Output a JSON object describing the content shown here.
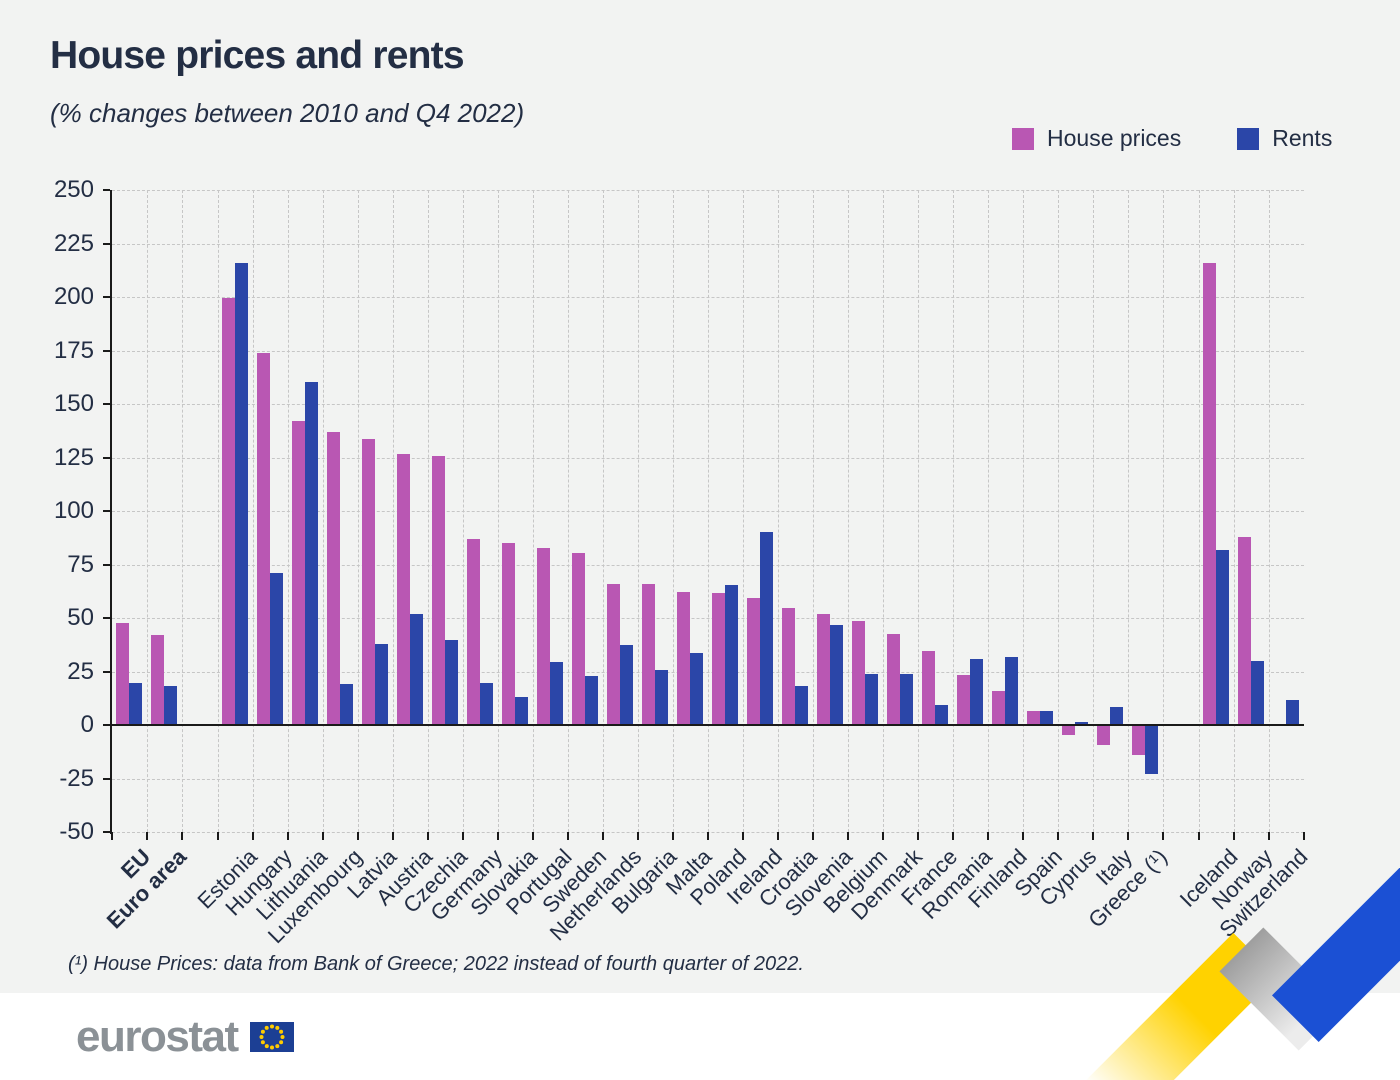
{
  "title": "House prices and rents",
  "subtitle": "(% changes between 2010 and Q4 2022)",
  "legend": {
    "house_prices_label": "House prices",
    "rents_label": "Rents"
  },
  "footnote": "(¹) House Prices: data from Bank of Greece; 2022 instead of fourth quarter of 2022.",
  "logo": {
    "text": "eurostat"
  },
  "colors": {
    "house_prices": "#b957b3",
    "rents": "#2b46a8",
    "background": "#f2f3f2",
    "text": "#232e44",
    "grid": "#c6c6c6",
    "axis": "#1a1a1a",
    "logo_gray": "#8b9196",
    "flag_blue": "#1c3f94",
    "star_yellow": "#ffcc00",
    "ribbon_yellow": "#ffd200",
    "ribbon_blue": "#1b50d4"
  },
  "y_axis": {
    "min": -50,
    "max": 250,
    "step": 25,
    "ticks": [
      250,
      225,
      200,
      175,
      150,
      125,
      100,
      75,
      50,
      25,
      0,
      -25,
      -50
    ]
  },
  "chart_data": {
    "type": "bar",
    "title": "House prices and rents",
    "subtitle": "(% changes between 2010 and Q4 2022)",
    "ylabel": "% change",
    "ylim": [
      -50,
      250
    ],
    "grid": true,
    "legend_position": "top-right",
    "categories": [
      "EU",
      "Euro area",
      "Estonia",
      "Hungary",
      "Lithuania",
      "Luxembourg",
      "Latvia",
      "Austria",
      "Czechia",
      "Germany",
      "Slovakia",
      "Portugal",
      "Sweden",
      "Netherlands",
      "Bulgaria",
      "Malta",
      "Poland",
      "Ireland",
      "Croatia",
      "Slovenia",
      "Belgium",
      "Denmark",
      "France",
      "Romania",
      "Finland",
      "Spain",
      "Cyprus",
      "Italy",
      "Greece (¹)",
      "Iceland",
      "Norway",
      "Switzerland"
    ],
    "bold_categories": [
      "EU",
      "Euro area"
    ],
    "gaps_after": [
      "Euro area",
      "Greece (¹)"
    ],
    "series": [
      {
        "name": "House prices",
        "values": [
          47.5,
          42,
          199.5,
          174,
          142,
          137,
          133.5,
          126.5,
          125.5,
          87,
          85,
          82.5,
          80.5,
          66,
          66,
          62,
          61.5,
          59.5,
          54.5,
          52,
          48.5,
          42.5,
          34.5,
          23.5,
          16,
          6.5,
          -4.5,
          -9.5,
          -14,
          216,
          88,
          null
        ]
      },
      {
        "name": "Rents",
        "values": [
          19.5,
          18,
          216,
          71,
          160.5,
          19,
          38,
          52,
          39.5,
          19.5,
          13,
          29.5,
          23,
          37.5,
          25.5,
          33.5,
          65.5,
          90,
          18,
          46.5,
          24,
          24,
          9.5,
          31,
          32,
          6.5,
          1.5,
          8.5,
          -23,
          82,
          30,
          11.5
        ]
      }
    ]
  }
}
